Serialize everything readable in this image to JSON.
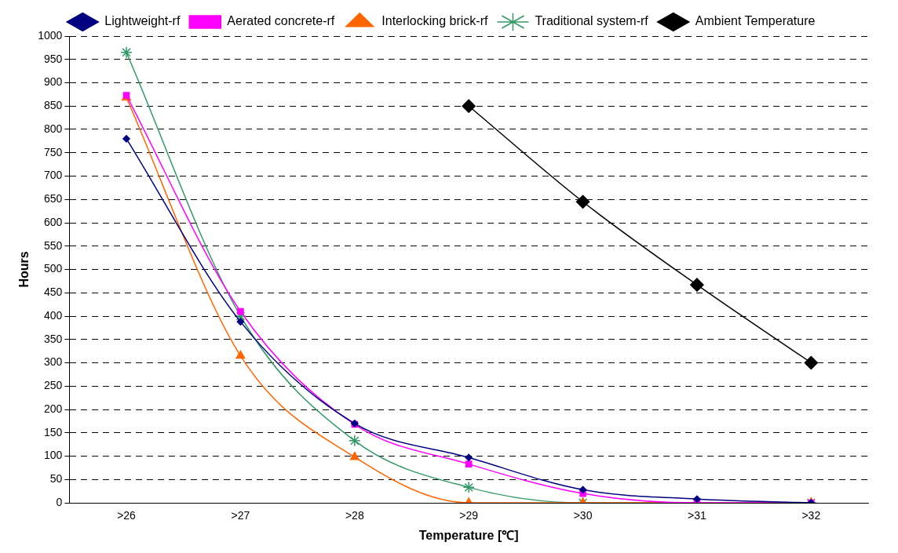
{
  "chart_data": {
    "type": "line",
    "xlabel": "Temperature [℃]",
    "ylabel": "Hours",
    "categories": [
      ">26",
      ">27",
      ">28",
      ">29",
      ">30",
      ">31",
      ">32"
    ],
    "ylim": [
      0,
      1000
    ],
    "yticks": [
      0,
      50,
      100,
      150,
      200,
      250,
      300,
      350,
      400,
      450,
      500,
      550,
      600,
      650,
      700,
      750,
      800,
      850,
      900,
      950,
      1000
    ],
    "grid": "y",
    "legend": "top",
    "line_style": "solid",
    "series": [
      {
        "name": "Lightweight-rf",
        "color": "#000080",
        "marker": "diamond",
        "values": [
          780,
          388,
          170,
          97,
          28,
          8,
          0
        ]
      },
      {
        "name": "Aerated concrete-rf",
        "color": "#ff00ff",
        "marker": "square",
        "values": [
          873,
          410,
          168,
          83,
          20,
          0,
          0
        ]
      },
      {
        "name": "Interlocking brick-rf",
        "color": "#ff6600",
        "marker": "triangle",
        "values": [
          868,
          315,
          98,
          0,
          0,
          0,
          0
        ]
      },
      {
        "name": "Traditional system-rf",
        "color": "#339966",
        "marker": "cross",
        "values": [
          965,
          400,
          133,
          33,
          0,
          0,
          0
        ]
      },
      {
        "name": "Ambient Temperature",
        "color": "#000000",
        "marker": "diamond",
        "values": [
          null,
          null,
          null,
          850,
          645,
          467,
          300
        ]
      }
    ]
  }
}
